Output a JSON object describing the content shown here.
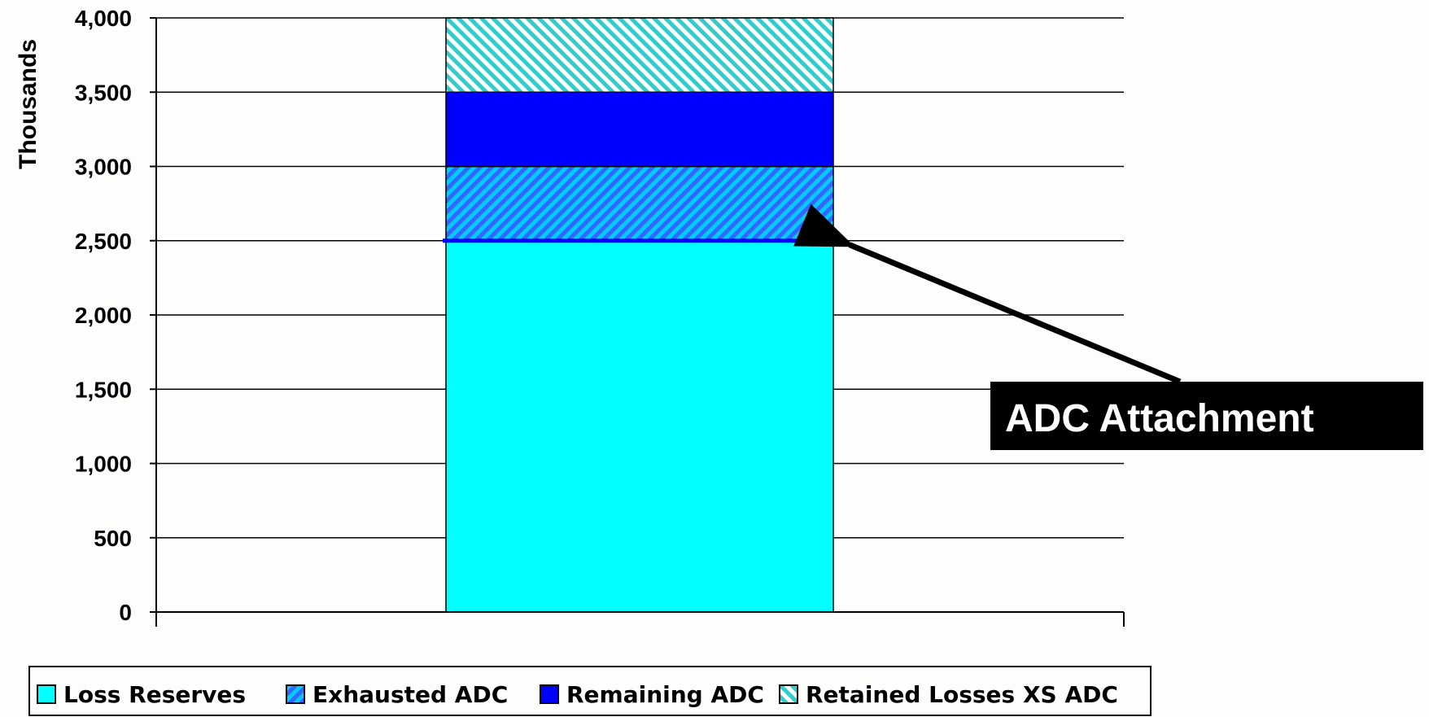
{
  "chart_data": {
    "type": "bar",
    "stacked": true,
    "categories": [
      ""
    ],
    "series": [
      {
        "name": "Loss Reserves",
        "values": [
          2500
        ],
        "color": "#00ffff",
        "pattern": "solid"
      },
      {
        "name": "Exhausted ADC",
        "values": [
          500
        ],
        "color": "#3366ff",
        "pattern": "diagonal-forward",
        "pattern_bg": "#00ccff"
      },
      {
        "name": "Remaining ADC",
        "values": [
          500
        ],
        "color": "#0000ff",
        "pattern": "solid"
      },
      {
        "name": "Retained Losses XS ADC",
        "values": [
          500
        ],
        "color": "#33cccc",
        "pattern": "diagonal-backward",
        "pattern_bg": "#ffffff"
      }
    ],
    "ylabel": "Thousands",
    "ylim": [
      0,
      4000
    ],
    "yticks": [
      "0",
      "500",
      "1,000",
      "1,500",
      "2,000",
      "2,500",
      "3,000",
      "3,500",
      "4,000"
    ],
    "grid": true,
    "legend_position": "bottom",
    "annotation": {
      "text": "ADC Attachment",
      "points_to_value": 2500,
      "marker_color": "#0000ff"
    }
  }
}
